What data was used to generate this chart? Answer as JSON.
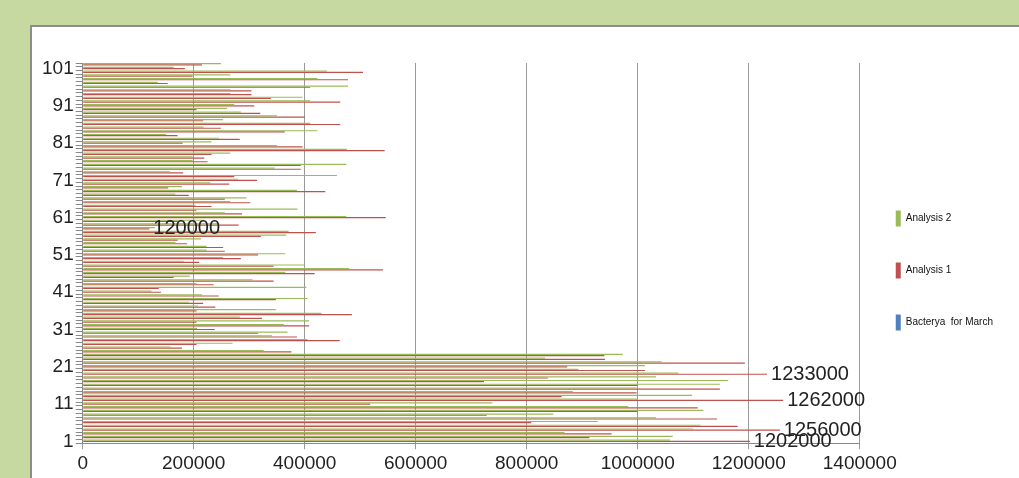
{
  "chart_data": {
    "type": "bar",
    "orientation": "horizontal",
    "categories": [
      null,
      "101",
      null,
      null,
      null,
      null,
      null,
      null,
      null,
      null,
      null,
      "91",
      null,
      null,
      null,
      null,
      null,
      null,
      null,
      null,
      null,
      "81",
      null,
      null,
      null,
      null,
      null,
      null,
      null,
      null,
      null,
      "71",
      null,
      null,
      null,
      null,
      null,
      null,
      null,
      null,
      null,
      "61",
      null,
      null,
      null,
      null,
      null,
      null,
      null,
      null,
      null,
      "51",
      null,
      null,
      null,
      null,
      null,
      null,
      null,
      null,
      null,
      "41",
      null,
      null,
      null,
      null,
      null,
      null,
      null,
      null,
      null,
      "31",
      null,
      null,
      null,
      null,
      null,
      null,
      null,
      null,
      null,
      "21",
      null,
      null,
      null,
      null,
      null,
      null,
      null,
      null,
      null,
      "11",
      null,
      null,
      null,
      null,
      null,
      null,
      null,
      null,
      null,
      "1"
    ],
    "series": [
      {
        "name": "Analysis 2",
        "color": "#9bbb59",
        "values": [
          249000,
          164000,
          440000,
          266000,
          423000,
          135000,
          478000,
          266000,
          266000,
          396000,
          410000,
          273000,
          260000,
          285000,
          350000,
          253000,
          410000,
          218000,
          423000,
          150000,
          246000,
          232000,
          350000,
          476000,
          266000,
          198000,
          198000,
          475000,
          346000,
          157000,
          458000,
          280000,
          230000,
          179000,
          386000,
          167000,
          295000,
          266000,
          203000,
          387000,
          256000,
          475000,
          218000,
          246000,
          130000,
          371000,
          367000,
          213000,
          167000,
          223000,
          223000,
          365000,
          253000,
          182000,
          400000,
          480000,
          365000,
          193000,
          306000,
          205000,
          403000,
          124000,
          215000,
          405000,
          191000,
          208000,
          348000,
          430000,
          283000,
          408000,
          362000,
          206000,
          369000,
          341000,
          405000,
          270000,
          158000,
          326000,
          973000,
          833000,
          1043000,
          1013000,
          893000,
          1073000,
          1033000,
          1163000,
          1148000,
          998000,
          883000,
          1098000,
          1000000,
          738000,
          983000,
          1118000,
          848000,
          1033000,
          928000,
          1113000,
          1100000,
          868000,
          1063000,
          1058000
        ]
      },
      {
        "name": "Analysis 1",
        "color": "#c0504d",
        "values": [
          215000,
          184000,
          505000,
          198000,
          478000,
          153000,
          410000,
          304000,
          304000,
          339000,
          464000,
          309000,
          205000,
          320000,
          400000,
          217000,
          464000,
          249000,
          364000,
          171000,
          283000,
          180000,
          396000,
          544000,
          232000,
          219000,
          225000,
          393000,
          393000,
          181000,
          273000,
          314000,
          264000,
          154000,
          437000,
          191000,
          256000,
          302000,
          232000,
          205000,
          287000,
          546000,
          171000,
          281000,
          120000,
          420000,
          321000,
          171000,
          188000,
          253000,
          256000,
          316000,
          285000,
          210000,
          344000,
          541000,
          418000,
          164000,
          344000,
          236000,
          137000,
          141000,
          245000,
          348000,
          217000,
          239000,
          205000,
          485000,
          323000,
          205000,
          408000,
          238000,
          316000,
          386000,
          463000,
          205000,
          179000,
          376000,
          940000,
          941000,
          1193000,
          873000,
          1013000,
          1233000,
          838000,
          723000,
          1000000,
          1148000,
          998000,
          863000,
          1262000,
          518000,
          1108000,
          1000000,
          728000,
          1143000,
          808000,
          1180000,
          1256000,
          953000,
          913000,
          1202000
        ],
        "value_labels": [
          null,
          null,
          null,
          null,
          null,
          null,
          null,
          null,
          null,
          null,
          null,
          null,
          null,
          null,
          null,
          null,
          null,
          null,
          null,
          null,
          null,
          null,
          null,
          null,
          null,
          null,
          null,
          null,
          null,
          null,
          null,
          null,
          null,
          null,
          null,
          null,
          null,
          null,
          null,
          null,
          null,
          null,
          null,
          null,
          "120000",
          null,
          null,
          null,
          null,
          null,
          null,
          null,
          null,
          null,
          null,
          null,
          null,
          null,
          null,
          null,
          null,
          null,
          null,
          null,
          null,
          null,
          null,
          null,
          null,
          null,
          null,
          null,
          null,
          null,
          null,
          null,
          null,
          null,
          null,
          null,
          null,
          null,
          null,
          "1233000",
          null,
          null,
          null,
          null,
          null,
          null,
          "1262000",
          null,
          null,
          null,
          null,
          null,
          null,
          null,
          "1256000",
          null,
          null,
          "1202000"
        ]
      },
      {
        "name": "Bacterya  for March",
        "color": "#4f81bd",
        "values": [
          0,
          0,
          0,
          0,
          0,
          0,
          0,
          0,
          0,
          0,
          0,
          0,
          0,
          0,
          0,
          0,
          0,
          0,
          0,
          0,
          0,
          0,
          0,
          0,
          0,
          0,
          0,
          0,
          0,
          0,
          0,
          0,
          0,
          0,
          0,
          0,
          0,
          0,
          0,
          0,
          0,
          0,
          0,
          0,
          0,
          0,
          0,
          0,
          0,
          0,
          0,
          0,
          0,
          0,
          0,
          0,
          0,
          0,
          0,
          0,
          0,
          0,
          0,
          0,
          0,
          0,
          0,
          0,
          0,
          0,
          0,
          0,
          0,
          0,
          0,
          0,
          0,
          0,
          0,
          0,
          0,
          0,
          0,
          0,
          0,
          0,
          0,
          0,
          0,
          0,
          0,
          0,
          0,
          0,
          0,
          0,
          0,
          0,
          0,
          0,
          0,
          0
        ]
      }
    ],
    "xlim": [
      0,
      1400000
    ],
    "xticks": [
      0,
      200000,
      400000,
      600000,
      800000,
      1000000,
      1200000,
      1400000
    ],
    "grid": "x",
    "legend": "right"
  }
}
